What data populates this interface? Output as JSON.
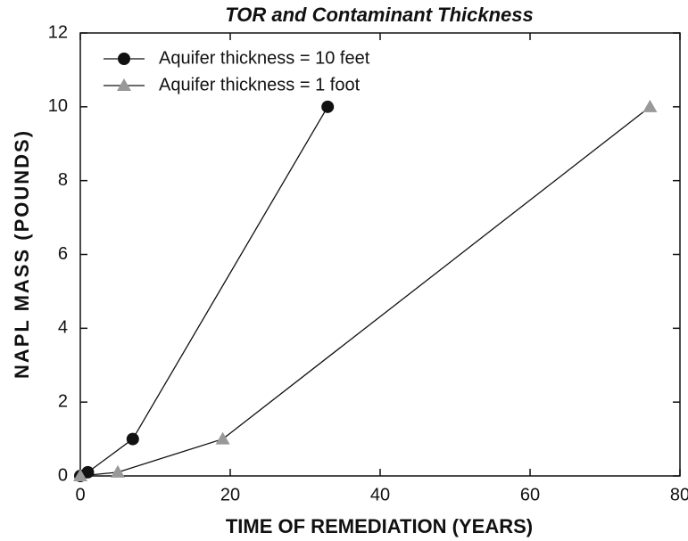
{
  "chart_data": {
    "type": "line",
    "title": "TOR and Contaminant Thickness",
    "x_label": "TIME OF REMEDIATION (YEARS)",
    "y_label": "NAPL MASS (POUNDS)",
    "series": [
      {
        "name": "Aquifer thickness = 10 feet",
        "color": "#111111",
        "marker": "circle",
        "x": [
          0,
          1,
          7,
          33
        ],
        "values": [
          0,
          0.1,
          1,
          10
        ]
      },
      {
        "name": "Aquifer thickness = 1 foot",
        "color": "#999999",
        "marker": "triangle",
        "x": [
          0,
          5,
          19,
          76
        ],
        "values": [
          0,
          0.1,
          1,
          10
        ]
      }
    ],
    "xlim": [
      0,
      80
    ],
    "xticks": [
      0,
      20,
      40,
      60,
      80
    ],
    "ylim": [
      0,
      12
    ],
    "yticks": [
      0,
      2,
      4,
      6,
      8,
      10,
      12
    ],
    "grid": false,
    "legend": "upper left"
  }
}
